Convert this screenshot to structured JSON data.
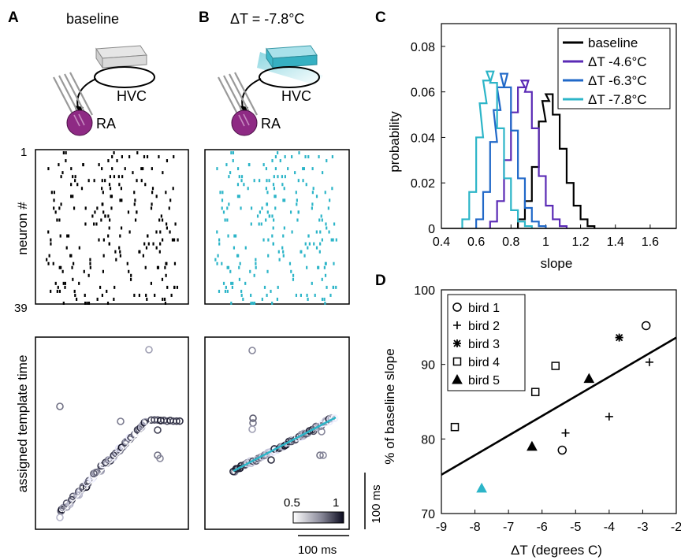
{
  "panel_labels": [
    "A",
    "B",
    "C",
    "D"
  ],
  "panel_a": {
    "title": "baseline",
    "hvc_label": "HVC",
    "ra_label": "RA",
    "raster_ylabel": "neuron #",
    "raster_ytick_top": "1",
    "raster_ytick_bottom": "39",
    "template_ylabel": "assigned template time"
  },
  "panel_b": {
    "title": "ΔT = -7.8°C",
    "hvc_label": "HVC",
    "ra_label": "RA",
    "colorbar_min": "0.5",
    "colorbar_max": "1",
    "scalebar_v": "100 ms",
    "scalebar_h": "100 ms",
    "colors": {
      "cooling": "#2cb5c8",
      "raster_baseline": "#000000",
      "ra": "#8e2a84"
    }
  },
  "chart_data": [
    {
      "type": "line",
      "panel": "C",
      "xlabel": "slope",
      "ylabel": "probability",
      "xlim": [
        0.4,
        1.75
      ],
      "ylim": [
        0,
        0.09
      ],
      "xticks": [
        "0.4",
        "0.6",
        "0.8",
        "1",
        "1.2",
        "1.4",
        "1.6"
      ],
      "yticks": [
        "0",
        "0.02",
        "0.04",
        "0.06",
        "0.08"
      ],
      "legend_position": "top-right",
      "series": [
        {
          "name": "baseline",
          "color": "#000000",
          "x": [
            0.86,
            0.9,
            0.94,
            0.98,
            1.0,
            1.02,
            1.06,
            1.1,
            1.14,
            1.18,
            1.22,
            1.26
          ],
          "y": [
            0.004,
            0.012,
            0.027,
            0.047,
            0.056,
            0.059,
            0.05,
            0.035,
            0.02,
            0.01,
            0.004,
            0.001
          ]
        },
        {
          "name": "ΔT -4.6°C",
          "color": "#5a2ab5",
          "x": [
            0.7,
            0.74,
            0.78,
            0.82,
            0.86,
            0.88,
            0.9,
            0.94,
            0.98,
            1.02,
            1.06,
            1.1
          ],
          "y": [
            0.003,
            0.012,
            0.03,
            0.051,
            0.062,
            0.065,
            0.06,
            0.044,
            0.023,
            0.01,
            0.004,
            0.001
          ]
        },
        {
          "name": "ΔT -6.3°C",
          "color": "#2068c8",
          "x": [
            0.62,
            0.66,
            0.7,
            0.72,
            0.74,
            0.76,
            0.78,
            0.82,
            0.86,
            0.9,
            0.94,
            0.98
          ],
          "y": [
            0.004,
            0.016,
            0.038,
            0.052,
            0.062,
            0.068,
            0.062,
            0.043,
            0.022,
            0.009,
            0.003,
            0.001
          ]
        },
        {
          "name": "ΔT -7.8°C",
          "color": "#2cb5c8",
          "x": [
            0.54,
            0.58,
            0.62,
            0.64,
            0.66,
            0.68,
            0.7,
            0.74,
            0.78,
            0.82,
            0.86,
            0.9
          ],
          "y": [
            0.004,
            0.016,
            0.04,
            0.055,
            0.065,
            0.069,
            0.064,
            0.044,
            0.022,
            0.008,
            0.003,
            0.001
          ]
        }
      ]
    },
    {
      "type": "scatter",
      "panel": "D",
      "xlabel": "ΔT (degrees C)",
      "ylabel": "% of baseline slope",
      "xlim": [
        -9,
        -2
      ],
      "ylim": [
        70,
        100
      ],
      "xticks": [
        "-9",
        "-8",
        "-7",
        "-6",
        "-5",
        "-4",
        "-3",
        "-2"
      ],
      "yticks": [
        "70",
        "80",
        "90",
        "100"
      ],
      "legend_position": "top-left",
      "fit_line": {
        "x": [
          -9,
          -2
        ],
        "y": [
          75.2,
          93.6
        ],
        "color": "#000000"
      },
      "series": [
        {
          "name": "bird 1",
          "marker": "circle",
          "x": [
            -2.9,
            -5.4
          ],
          "y": [
            95.2,
            78.5
          ]
        },
        {
          "name": "bird 2",
          "marker": "plus",
          "x": [
            -2.8,
            -4.0,
            -5.3
          ],
          "y": [
            90.3,
            83.0,
            80.8
          ]
        },
        {
          "name": "bird 3",
          "marker": "asterisk",
          "x": [
            -3.7
          ],
          "y": [
            93.6
          ]
        },
        {
          "name": "bird 4",
          "marker": "square",
          "x": [
            -8.6,
            -6.2,
            -5.6
          ],
          "y": [
            81.6,
            86.3,
            89.8
          ]
        },
        {
          "name": "bird 5",
          "marker": "triangle",
          "x": [
            -4.6,
            -6.3
          ],
          "y": [
            88.1,
            79.0
          ]
        }
      ],
      "highlight_point": {
        "x": -7.8,
        "y": 73.4,
        "marker": "triangle",
        "color": "#2cb5c8"
      }
    }
  ]
}
